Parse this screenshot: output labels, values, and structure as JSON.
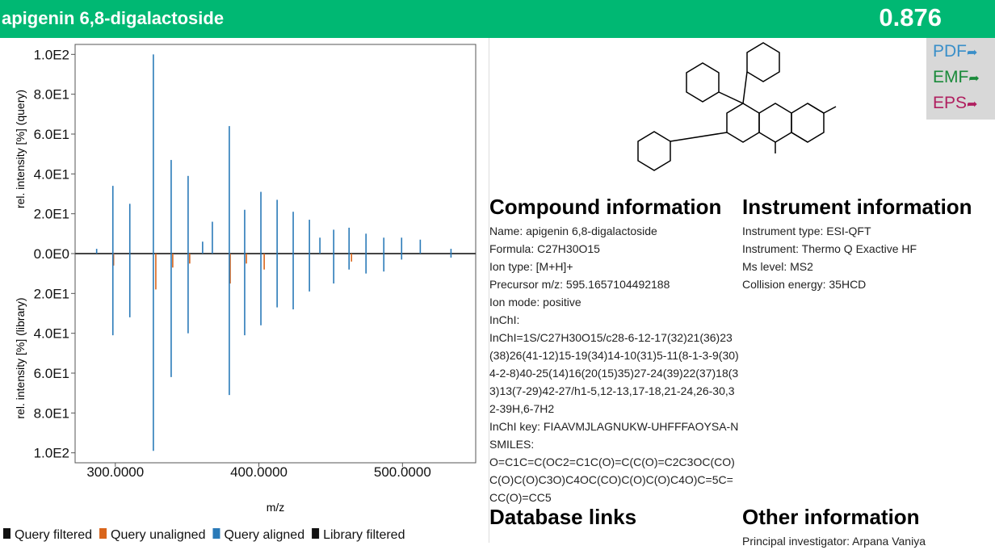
{
  "header": {
    "title": "apigenin 6,8-digalactoside",
    "score": 0.876
  },
  "export_buttons": [
    "PDF",
    "EMF",
    "EPS"
  ],
  "chart_data": {
    "type": "spectrum",
    "y_label_top": "rel. intensity [%] (query)",
    "y_label_bottom": "rel. intensity [%] (library)",
    "x_label": "m/z",
    "xlim": [
      272,
      551
    ],
    "xticks": [
      {
        "value": 300,
        "label": "300.0000"
      },
      {
        "value": 400,
        "label": "400.0000"
      },
      {
        "value": 500,
        "label": "500.0000"
      }
    ],
    "ylim": [
      -105,
      105
    ],
    "yticks": [
      {
        "value": 100,
        "label": "1.0E2"
      },
      {
        "value": 80,
        "label": "8.0E1"
      },
      {
        "value": 60,
        "label": "6.0E1"
      },
      {
        "value": 40,
        "label": "4.0E1"
      },
      {
        "value": 20,
        "label": "2.0E1"
      },
      {
        "value": 0,
        "label": "0.0E0"
      },
      {
        "value": -20,
        "label": "2.0E1"
      },
      {
        "value": -40,
        "label": "4.0E1"
      },
      {
        "value": -60,
        "label": "6.0E1"
      },
      {
        "value": -80,
        "label": "8.0E1"
      },
      {
        "value": -100,
        "label": "1.0E2"
      }
    ],
    "series": [
      {
        "name": "Query filtered",
        "color": "#111111",
        "x": [],
        "values": []
      },
      {
        "name": "Query unaligned",
        "color": "#d9651b",
        "x": [
          298.8,
          328.2,
          340.0,
          351.8,
          380.0,
          391.3,
          403.7,
          464.5
        ],
        "values": [
          -6,
          -18,
          -7,
          -5,
          -15,
          -5,
          -8,
          -4
        ]
      },
      {
        "name": "Query aligned",
        "color": "#2a7ab8",
        "x": [
          287.0,
          298.3,
          310.1,
          326.5,
          338.9,
          350.7,
          360.8,
          367.6,
          379.4,
          390.1,
          401.4,
          412.7,
          423.9,
          435.2,
          442.5,
          452.1,
          462.8,
          474.6,
          487.0,
          499.4,
          512.4,
          533.8
        ],
        "values": [
          2.4,
          34,
          25,
          100,
          47,
          39,
          6,
          16,
          64,
          22,
          31,
          27,
          21,
          17,
          8,
          12,
          13,
          10,
          8,
          8,
          7,
          2.4
        ],
        "library_values": [
          null,
          -41,
          -32,
          -99,
          -62,
          -40,
          null,
          null,
          -71,
          -41,
          -36,
          -27,
          -28,
          -19,
          null,
          -15,
          -8,
          -10,
          -9,
          -3,
          null,
          -2
        ]
      },
      {
        "name": "Library filtered",
        "color": "#111111",
        "x": [],
        "values": []
      }
    ]
  },
  "compound_information": {
    "heading": "Compound information",
    "lines": [
      "Name: apigenin 6,8-digalactoside",
      "Formula: C27H30O15",
      "Ion type: [M+H]+",
      "Precursor m/z: 595.1657104492188",
      "Ion mode: positive",
      "InChI:",
      "InChI=1S/C27H30O15/c28-6-12-17(32)21(36)23(38)26(41-12)15-19(34)14-10(31)5-11(8-1-3-9(30)4-2-8)40-25(14)16(20(15)35)27-24(39)22(37)18(33)13(7-29)42-27/h1-5,12-13,17-18,21-24,26-30,32-39H,6-7H2",
      "InChI key: FIAAVMJLAGNUKW-UHFFFAOYSA-N",
      "SMILES:",
      "O=C1C=C(OC2=C1C(O)=C(C(O)=C2C3OC(CO)C(O)C(O)C3O)C4OC(CO)C(O)C(O)C4O)C=5C=CC(O)=CC5"
    ]
  },
  "instrument_information": {
    "heading": "Instrument information",
    "lines": [
      "Instrument type: ESI-QFT",
      "Instrument: Thermo Q Exactive HF",
      "Ms level: MS2",
      "Collision energy: 35HCD"
    ]
  },
  "database_links": {
    "heading": "Database links"
  },
  "other_information": {
    "heading": "Other information",
    "lines": [
      "Principal investigator: Arpana Vaniya"
    ]
  }
}
